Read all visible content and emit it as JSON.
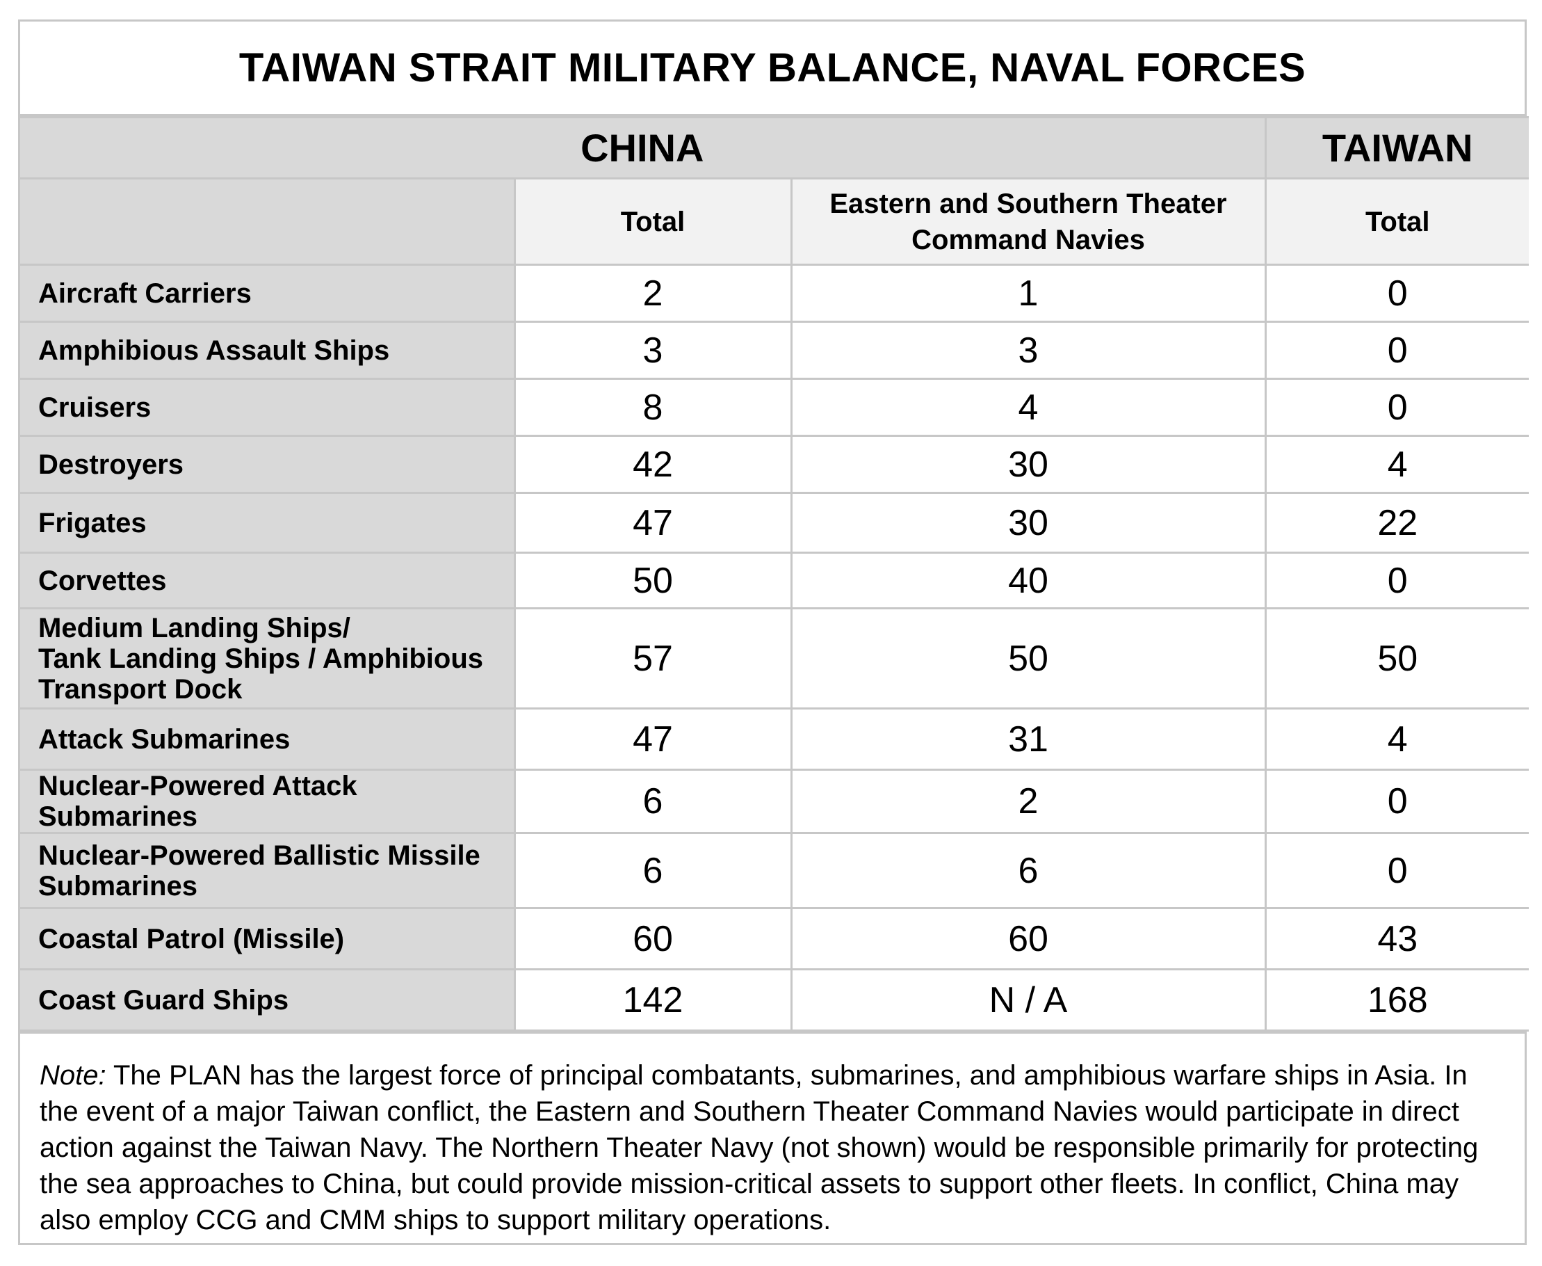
{
  "title": "TAIWAN STRAIT MILITARY BALANCE, NAVAL FORCES",
  "groups": {
    "china": "CHINA",
    "taiwan": "TAIWAN"
  },
  "columns": {
    "china_total": "Total",
    "theater_line1": "Eastern and Southern Theater",
    "theater_line2": "Command Navies",
    "taiwan_total": "Total"
  },
  "rows": [
    {
      "label": "Aircraft Carriers",
      "china_total": "2",
      "theater": "1",
      "taiwan": "0"
    },
    {
      "label": "Amphibious Assault Ships",
      "china_total": "3",
      "theater": "3",
      "taiwan": "0"
    },
    {
      "label": "Cruisers",
      "china_total": "8",
      "theater": "4",
      "taiwan": "0"
    },
    {
      "label": "Destroyers",
      "china_total": "42",
      "theater": "30",
      "taiwan": "4"
    },
    {
      "label": "Frigates",
      "china_total": "47",
      "theater": "30",
      "taiwan": "22"
    },
    {
      "label": "Corvettes",
      "china_total": "50",
      "theater": "40",
      "taiwan": "0"
    },
    {
      "label_lines": [
        "Medium Landing Ships/",
        "Tank Landing Ships / Amphibious",
        "Transport Dock"
      ],
      "china_total": "57",
      "theater": "50",
      "taiwan": "50"
    },
    {
      "label": "Attack Submarines",
      "china_total": "47",
      "theater": "31",
      "taiwan": "4"
    },
    {
      "label": "Nuclear-Powered Attack Submarines",
      "china_total": "6",
      "theater": "2",
      "taiwan": "0"
    },
    {
      "label_lines": [
        "Nuclear-Powered Ballistic Missile",
        "Submarines"
      ],
      "china_total": "6",
      "theater": "6",
      "taiwan": "0"
    },
    {
      "label": "Coastal Patrol (Missile)",
      "china_total": "60",
      "theater": "60",
      "taiwan": "43"
    },
    {
      "label": "Coast Guard Ships",
      "china_total": "142",
      "theater": "N / A",
      "taiwan": "168"
    }
  ],
  "note": {
    "label": "Note:",
    "text": " The PLAN has the largest force of principal combatants, submarines, and amphibious warfare ships in Asia. In the event of a major Taiwan conflict, the Eastern and Southern Theater Command Navies would participate in direct action against the Taiwan Navy. The Northern Theater Navy (not shown) would be responsible primarily for protecting the sea approaches to China, but could provide mission-critical assets to support other fleets. In conflict, China may also employ CCG and CMM ships to support military operations."
  }
}
